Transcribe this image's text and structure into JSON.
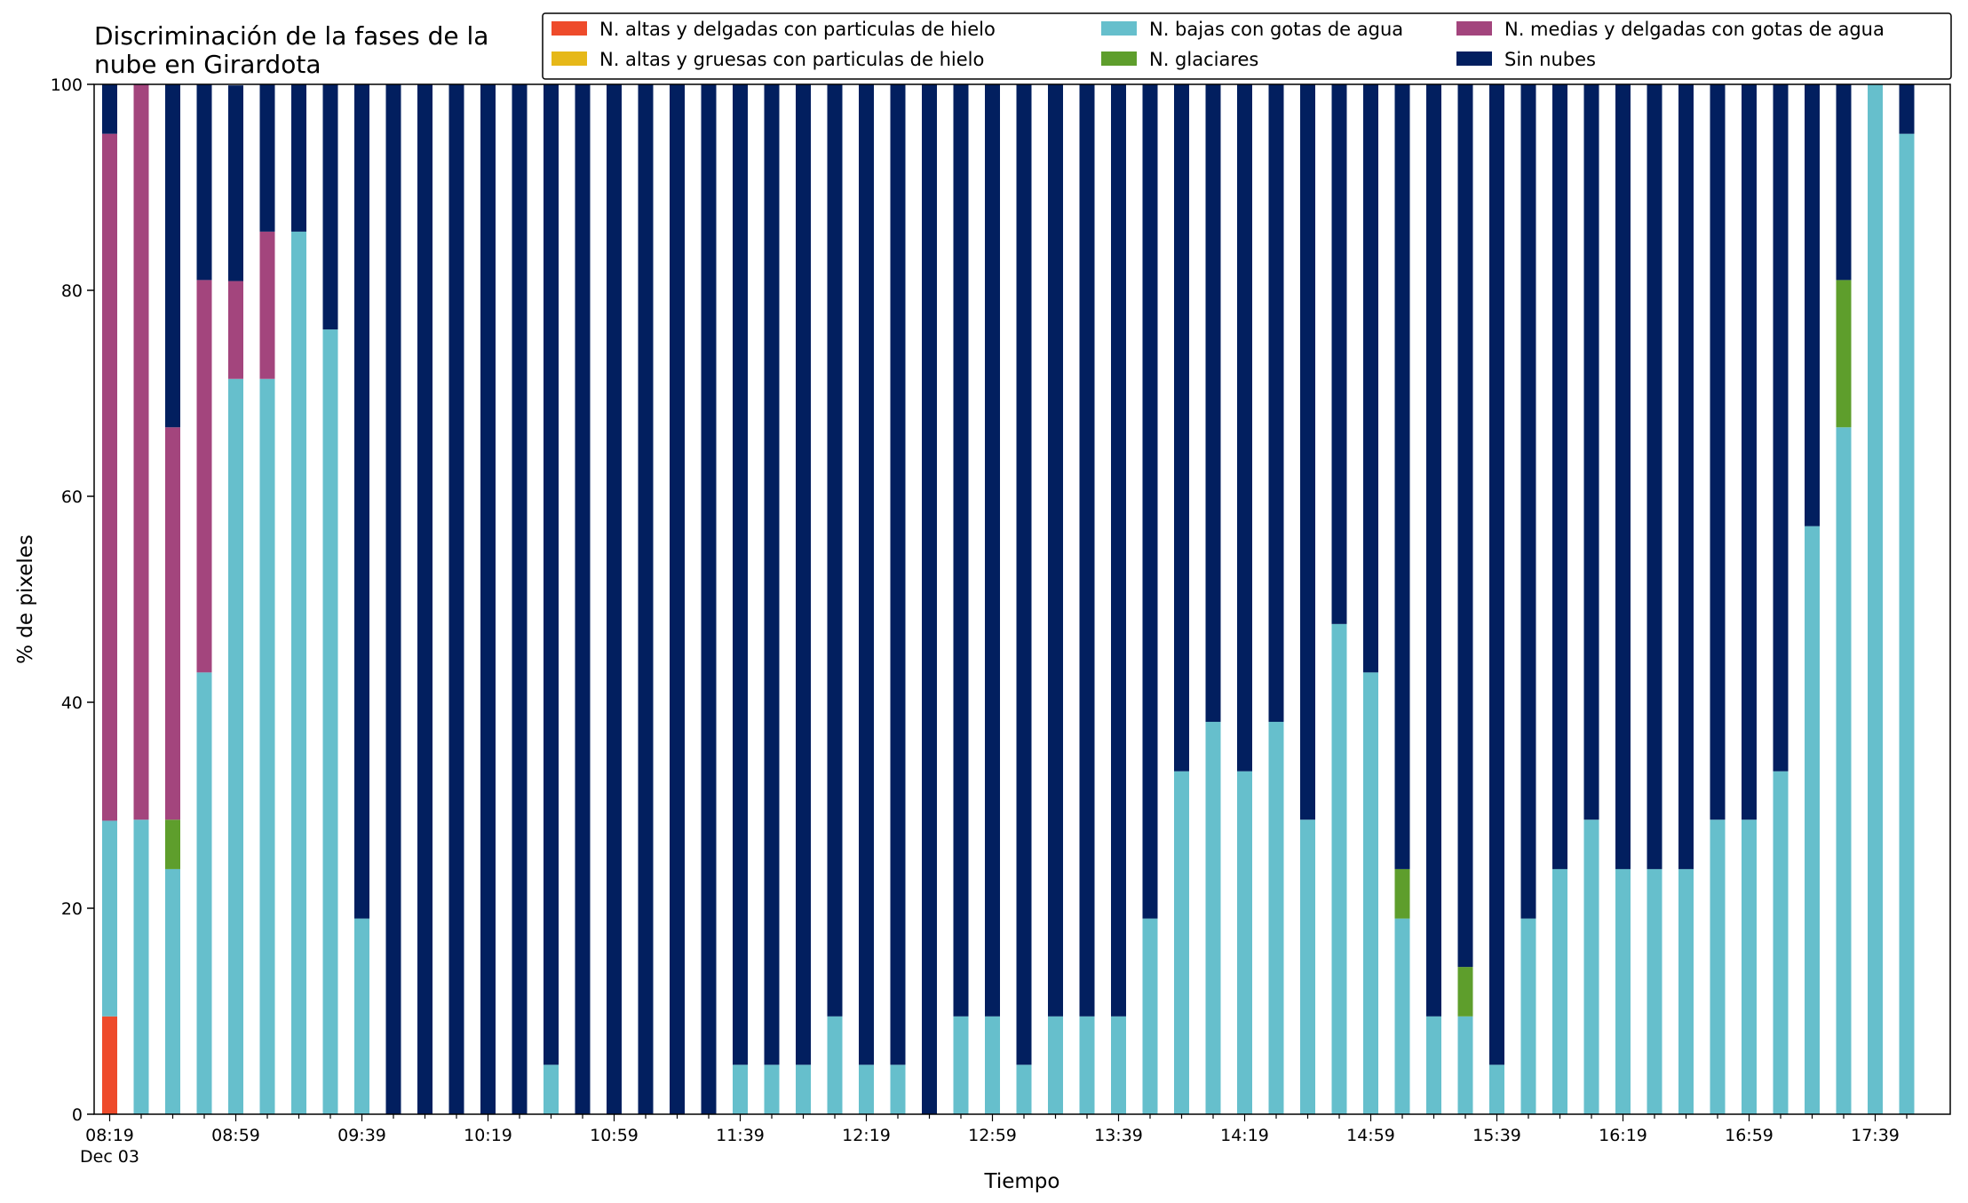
{
  "chart_data": {
    "type": "bar",
    "stacked": true,
    "title": "Discriminación de la fases de la\nnube en Girardota",
    "xlabel": "Tiempo",
    "ylabel": "% de pixeles",
    "ylim": [
      0,
      100
    ],
    "yticks": [
      0,
      20,
      40,
      60,
      80,
      100
    ],
    "xtick_labels": [
      "08:19",
      "08:59",
      "09:39",
      "10:19",
      "10:59",
      "11:39",
      "12:19",
      "12:59",
      "13:39",
      "14:19",
      "14:59",
      "15:39",
      "16:19",
      "16:59",
      "17:39"
    ],
    "xtick_date_label": "Dec 03",
    "legend_position": "top-right",
    "grid": false,
    "categories": [
      "08:19",
      "08:29",
      "08:39",
      "08:49",
      "08:59",
      "09:09",
      "09:19",
      "09:29",
      "09:39",
      "09:49",
      "09:59",
      "10:09",
      "10:19",
      "10:29",
      "10:39",
      "10:49",
      "10:59",
      "11:09",
      "11:19",
      "11:29",
      "11:39",
      "11:49",
      "11:59",
      "12:09",
      "12:19",
      "12:29",
      "12:39",
      "12:49",
      "12:59",
      "13:09",
      "13:19",
      "13:29",
      "13:39",
      "13:49",
      "13:59",
      "14:09",
      "14:19",
      "14:29",
      "14:39",
      "14:49",
      "14:59",
      "15:09",
      "15:19",
      "15:29",
      "15:39",
      "15:49",
      "15:59",
      "16:09",
      "16:19",
      "16:29",
      "16:39",
      "16:49",
      "16:59",
      "17:09",
      "17:19",
      "17:29",
      "17:39",
      "17:49"
    ],
    "series": [
      {
        "name": "N. altas y delgadas con particulas de hielo",
        "color": "#ee4b2b",
        "values": [
          9.5,
          0,
          0,
          0,
          0,
          0,
          0,
          0,
          0,
          0,
          0,
          0,
          0,
          0,
          0,
          0,
          0,
          0,
          0,
          0,
          0,
          0,
          0,
          0,
          0,
          0,
          0,
          0,
          0,
          0,
          0,
          0,
          0,
          0,
          0,
          0,
          0,
          0,
          0,
          0,
          0,
          0,
          0,
          0,
          0,
          0,
          0,
          0,
          0,
          0,
          0,
          0,
          0,
          0,
          0,
          0,
          0,
          0
        ]
      },
      {
        "name": "N. altas y gruesas con particulas de hielo",
        "color": "#e6b818",
        "values": [
          0,
          0,
          0,
          0,
          0,
          0,
          0,
          0,
          0,
          0,
          0,
          0,
          0,
          0,
          0,
          0,
          0,
          0,
          0,
          0,
          0,
          0,
          0,
          0,
          0,
          0,
          0,
          0,
          0,
          0,
          0,
          0,
          0,
          0,
          0,
          0,
          0,
          0,
          0,
          0,
          0,
          0,
          0,
          0,
          0,
          0,
          0,
          0,
          0,
          0,
          0,
          0,
          0,
          0,
          0,
          0,
          0,
          0
        ]
      },
      {
        "name": "N. bajas con gotas de agua",
        "color": "#66bfcc",
        "values": [
          19,
          28.6,
          23.8,
          42.9,
          71.4,
          71.4,
          85.7,
          76.2,
          19,
          0,
          0,
          0,
          0,
          0,
          4.8,
          0,
          0,
          0,
          0,
          0,
          4.8,
          4.8,
          4.8,
          9.5,
          4.8,
          4.8,
          0,
          9.5,
          9.5,
          4.8,
          9.5,
          9.5,
          9.5,
          19,
          33.3,
          38.1,
          33.3,
          38.1,
          28.6,
          47.6,
          42.9,
          19,
          9.5,
          9.5,
          4.8,
          19,
          23.8,
          28.6,
          23.8,
          23.8,
          23.8,
          28.6,
          28.6,
          33.3,
          57.1,
          66.7,
          100,
          95.2
        ]
      },
      {
        "name": "N. glaciares",
        "color": "#5e9e2c",
        "values": [
          0,
          0,
          4.8,
          0,
          0,
          0,
          0,
          0,
          0,
          0,
          0,
          0,
          0,
          0,
          0,
          0,
          0,
          0,
          0,
          0,
          0,
          0,
          0,
          0,
          0,
          0,
          0,
          0,
          0,
          0,
          0,
          0,
          0,
          0,
          0,
          0,
          0,
          0,
          0,
          0,
          0,
          4.8,
          0,
          4.8,
          0,
          0,
          0,
          0,
          0,
          0,
          0,
          0,
          0,
          0,
          0,
          14.3,
          0,
          0
        ]
      },
      {
        "name": "N. medias y delgadas con gotas de agua",
        "color": "#a3457d",
        "values": [
          66.7,
          71.4,
          38.1,
          38.1,
          9.5,
          14.3,
          0,
          0,
          0,
          0,
          0,
          0,
          0,
          0,
          0,
          0,
          0,
          0,
          0,
          0,
          0,
          0,
          0,
          0,
          0,
          0,
          0,
          0,
          0,
          0,
          0,
          0,
          0,
          0,
          0,
          0,
          0,
          0,
          0,
          0,
          0,
          0,
          0,
          0,
          0,
          0,
          0,
          0,
          0,
          0,
          0,
          0,
          0,
          0,
          0,
          0,
          0,
          0
        ]
      },
      {
        "name": "Sin nubes",
        "color": "#021f5f",
        "values": [
          4.8,
          0,
          33.3,
          19,
          19,
          14.3,
          14.3,
          23.8,
          81,
          100,
          100,
          100,
          100,
          100,
          95.2,
          100,
          100,
          100,
          100,
          100,
          95.2,
          95.2,
          95.2,
          90.5,
          95.2,
          95.2,
          100,
          90.5,
          90.5,
          95.2,
          90.5,
          90.5,
          90.5,
          81,
          66.7,
          61.9,
          66.7,
          61.9,
          71.4,
          52.4,
          57.1,
          76.2,
          90.5,
          85.7,
          95.2,
          81,
          76.2,
          71.4,
          76.2,
          76.2,
          76.2,
          71.4,
          71.4,
          66.7,
          42.9,
          19,
          0,
          4.8
        ]
      }
    ]
  }
}
